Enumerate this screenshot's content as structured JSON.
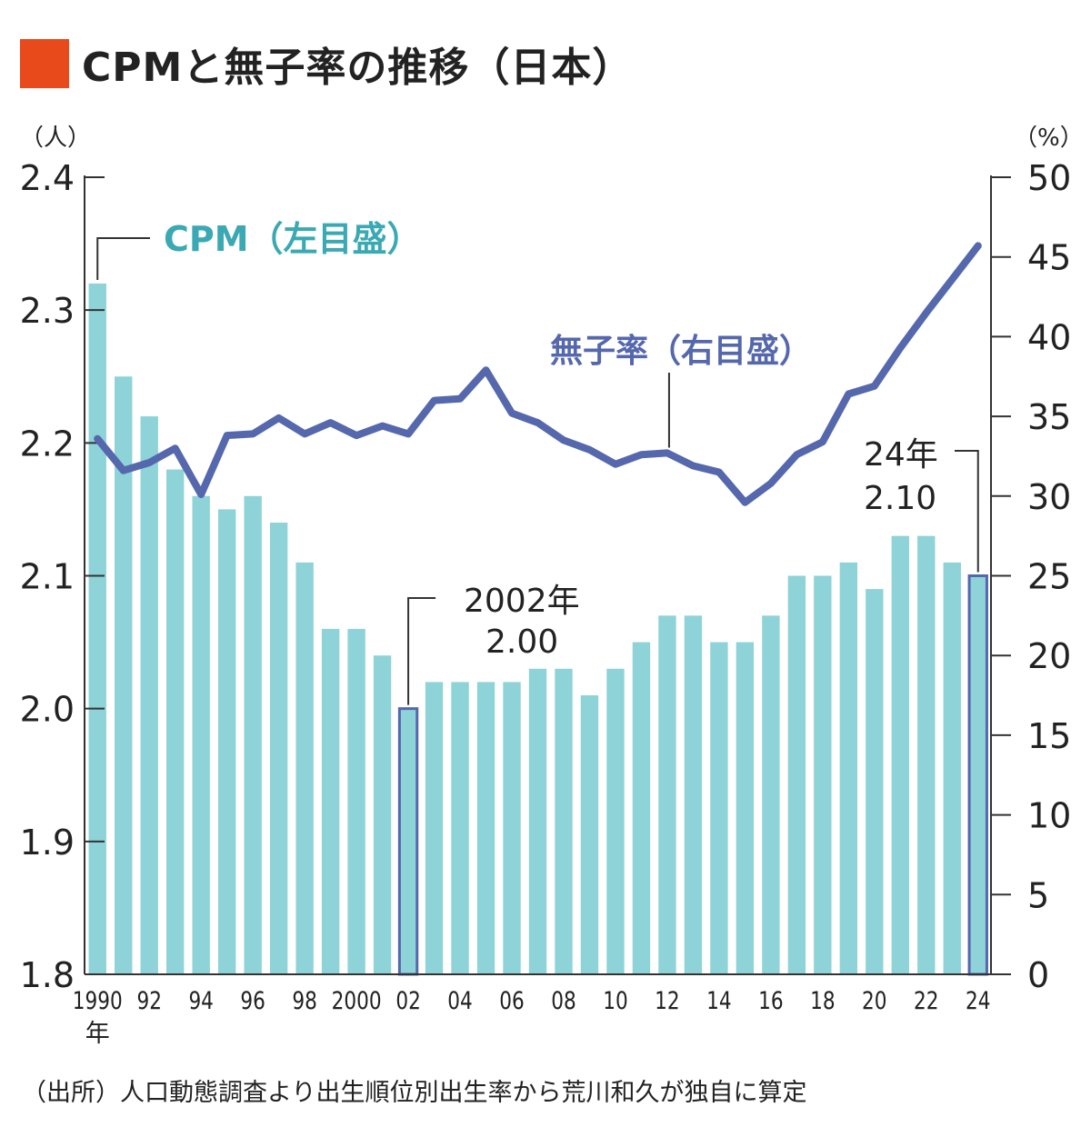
{
  "header": {
    "title": "CPMと無子率の推移（日本）",
    "accent_color": "#e84a1b"
  },
  "chart_data": {
    "type": "bar",
    "title": "CPMと無子率の推移（日本）",
    "categories": [
      "1990",
      "1991",
      "1992",
      "1993",
      "1994",
      "1995",
      "1996",
      "1997",
      "1998",
      "1999",
      "2000",
      "2001",
      "2002",
      "2003",
      "2004",
      "2005",
      "2006",
      "2007",
      "2008",
      "2009",
      "2010",
      "2011",
      "2012",
      "2013",
      "2014",
      "2015",
      "2016",
      "2017",
      "2018",
      "2019",
      "2020",
      "2021",
      "2022",
      "2023",
      "2024"
    ],
    "x_tick_labels": [
      "1990",
      "92",
      "94",
      "96",
      "98",
      "2000",
      "02",
      "04",
      "06",
      "08",
      "10",
      "12",
      "14",
      "16",
      "18",
      "20",
      "22",
      "24"
    ],
    "x_unit_label": "年",
    "series": [
      {
        "name": "CPM（左目盛）",
        "type": "bar",
        "axis": "left",
        "color": "#8dd3d8",
        "values": [
          2.32,
          2.25,
          2.22,
          2.18,
          2.16,
          2.15,
          2.16,
          2.14,
          2.11,
          2.06,
          2.06,
          2.04,
          2.0,
          2.02,
          2.02,
          2.02,
          2.02,
          2.03,
          2.03,
          2.01,
          2.03,
          2.05,
          2.07,
          2.07,
          2.05,
          2.05,
          2.07,
          2.1,
          2.1,
          2.11,
          2.09,
          2.13,
          2.13,
          2.11,
          2.1
        ]
      },
      {
        "name": "無子率（右目盛）",
        "type": "line",
        "axis": "right",
        "color": "#5567ad",
        "values": [
          33.6,
          31.6,
          32.1,
          33.0,
          30.1,
          33.8,
          33.9,
          34.9,
          33.9,
          34.6,
          33.8,
          34.4,
          33.9,
          36.0,
          36.1,
          37.9,
          35.2,
          34.6,
          33.5,
          32.9,
          32.0,
          32.6,
          32.7,
          31.9,
          31.5,
          29.6,
          30.8,
          32.6,
          33.4,
          36.4,
          36.9,
          39.3,
          41.5,
          43.6,
          45.7
        ]
      }
    ],
    "y_left": {
      "unit_label": "（人）",
      "range": [
        1.8,
        2.4
      ],
      "ticks": [
        "1.8",
        "1.9",
        "2.0",
        "2.1",
        "2.2",
        "2.3",
        "2.4"
      ]
    },
    "y_right": {
      "unit_label": "（%）",
      "range": [
        0,
        50
      ],
      "ticks": [
        "0",
        "5",
        "10",
        "15",
        "20",
        "25",
        "30",
        "35",
        "40",
        "45",
        "50"
      ]
    },
    "highlighted_bars": [
      "2002",
      "2024"
    ],
    "highlight_outline_color": "#5567ad",
    "annotations": [
      {
        "target": "2002",
        "line1": "2002年",
        "line2": "2.00"
      },
      {
        "target": "2024",
        "line1": "24年",
        "line2": "2.10"
      }
    ],
    "grid": false,
    "legend": "inline labels"
  },
  "source_note": "（出所）人口動態調査より出生順位別出生率から荒川和久が独自に算定"
}
